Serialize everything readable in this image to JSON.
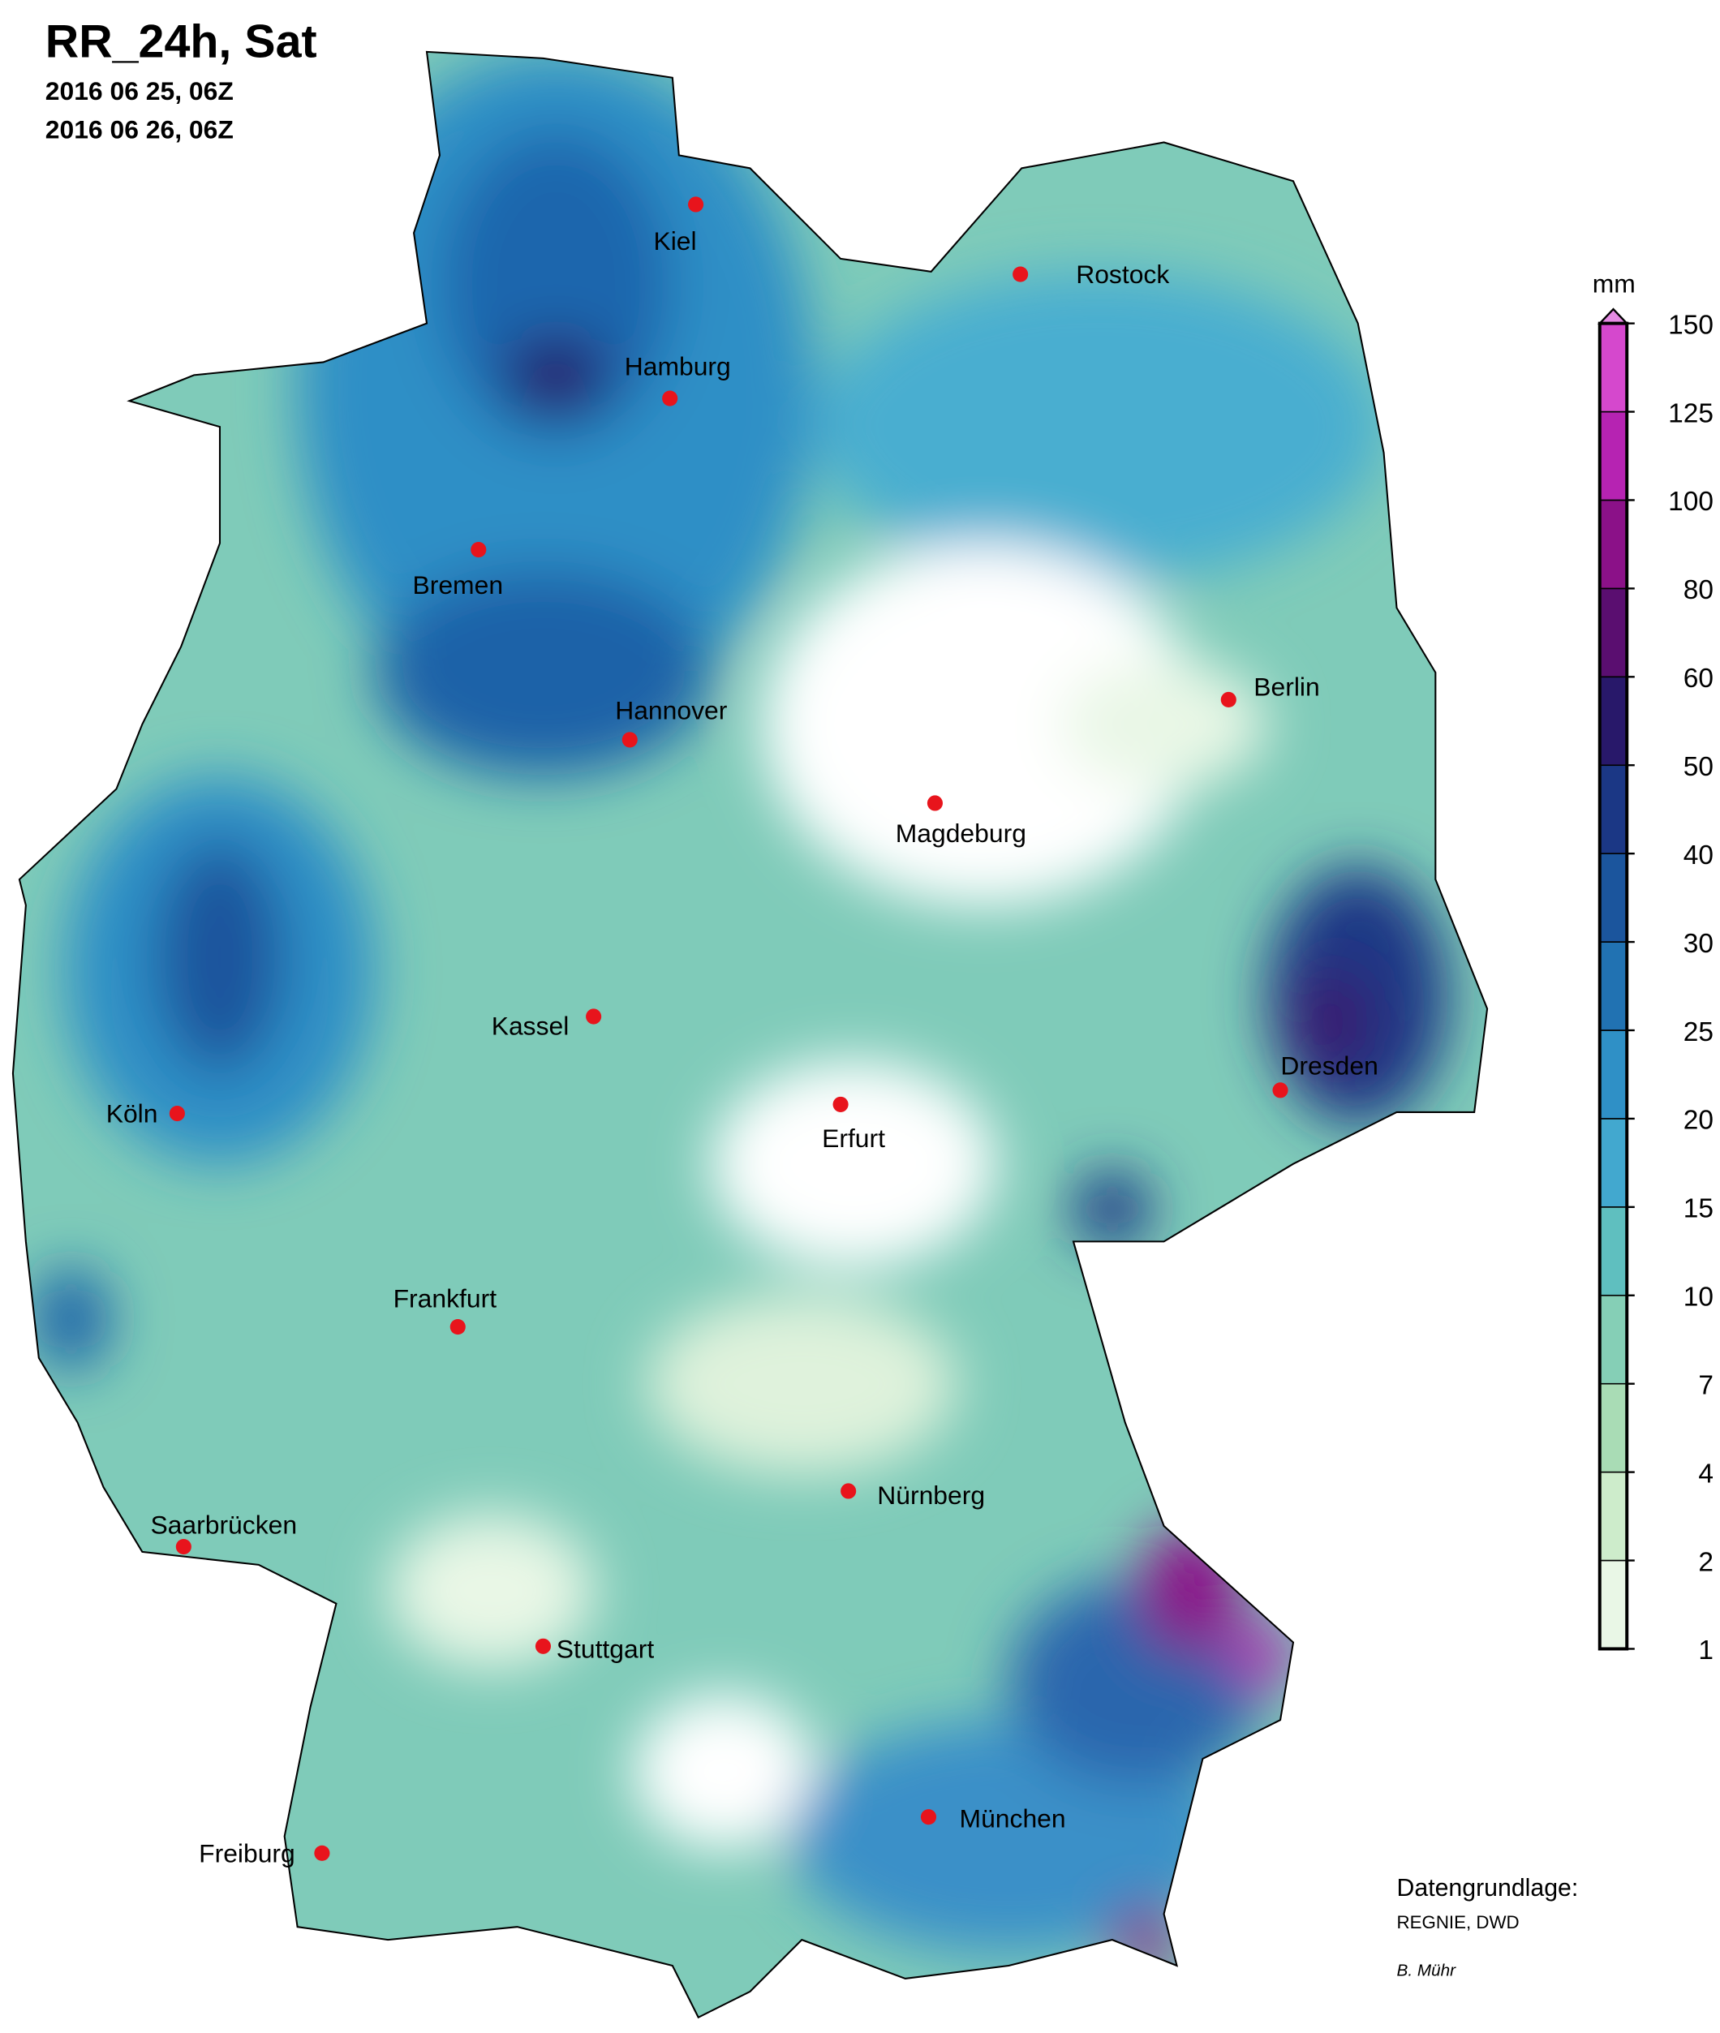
{
  "header": {
    "title": "RR_24h, Sat",
    "dates": [
      "2016 06 25, 06Z",
      "2016 06 26, 06Z"
    ]
  },
  "cities": [
    "Kiel",
    "Rostock",
    "Hamburg",
    "Bremen",
    "Hannover",
    "Berlin",
    "Magdeburg",
    "Kassel",
    "Köln",
    "Erfurt",
    "Dresden",
    "Frankfurt",
    "Saarbrücken",
    "Nürnberg",
    "Stuttgart",
    "München",
    "Freiburg"
  ],
  "legend": {
    "unit": "mm",
    "ticks": [
      1,
      2,
      4,
      7,
      10,
      15,
      20,
      25,
      30,
      40,
      50,
      60,
      80,
      100,
      125,
      150
    ],
    "colors": [
      "#e9f7e6",
      "#cdeccb",
      "#a9dcb5",
      "#85cfb6",
      "#5fbfbf",
      "#42a8cf",
      "#2f90c6",
      "#2172b2",
      "#1b559d",
      "#1b3785",
      "#28186a",
      "#5a0e70",
      "#8b1188",
      "#b623b2",
      "#d548cd"
    ],
    "overflow_color": "#e58be3"
  },
  "credits": {
    "source_label": "Datengrundlage:",
    "source": "REGNIE, DWD",
    "author": "B. Mühr"
  }
}
